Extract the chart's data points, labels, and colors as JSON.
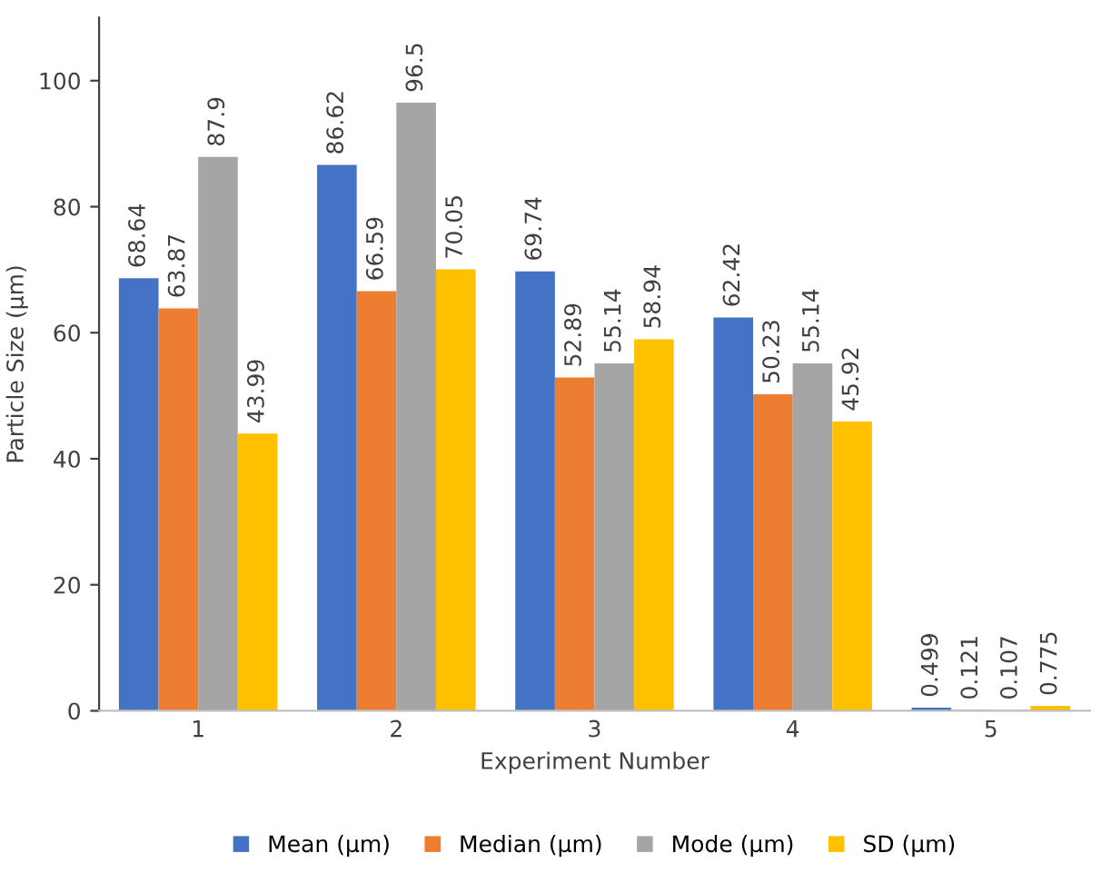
{
  "chart_data": {
    "type": "bar",
    "xlabel": "Experiment Number",
    "ylabel": "Particle Size (µm)",
    "categories": [
      "1",
      "2",
      "3",
      "4",
      "5"
    ],
    "series": [
      {
        "name": "Mean (µm)",
        "color": "#4472c4",
        "values": [
          68.64,
          86.62,
          69.74,
          62.42,
          0.499
        ]
      },
      {
        "name": "Median (µm)",
        "color": "#ed7d31",
        "values": [
          63.87,
          66.59,
          52.89,
          50.23,
          0.121
        ]
      },
      {
        "name": "Mode (µm)",
        "color": "#a5a5a5",
        "values": [
          87.9,
          96.5,
          55.14,
          55.14,
          0.107
        ]
      },
      {
        "name": "SD (µm)",
        "color": "#ffc000",
        "values": [
          43.99,
          70.05,
          58.94,
          45.92,
          0.775
        ]
      }
    ],
    "ylim": [
      0,
      110
    ],
    "yticks": [
      0,
      20,
      40,
      60,
      80,
      100
    ],
    "grid": false,
    "legend": "bottom",
    "data_labels": true
  }
}
